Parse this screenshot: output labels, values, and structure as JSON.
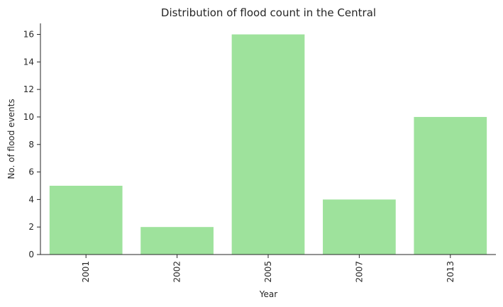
{
  "chart_data": {
    "type": "bar",
    "title": "Distribution of flood count in the Central",
    "xlabel": "Year",
    "ylabel": "No. of flood events",
    "categories": [
      "2001",
      "2002",
      "2005",
      "2007",
      "2013"
    ],
    "values": [
      5,
      2,
      16,
      4,
      10
    ],
    "ylim": [
      0,
      16.8
    ],
    "yticks": [
      0,
      2,
      4,
      6,
      8,
      10,
      12,
      14,
      16
    ],
    "bar_color": "#9ee29c",
    "axis_color": "#262626",
    "grid": false,
    "legend": "none",
    "xtick_rotation": "vertical"
  }
}
